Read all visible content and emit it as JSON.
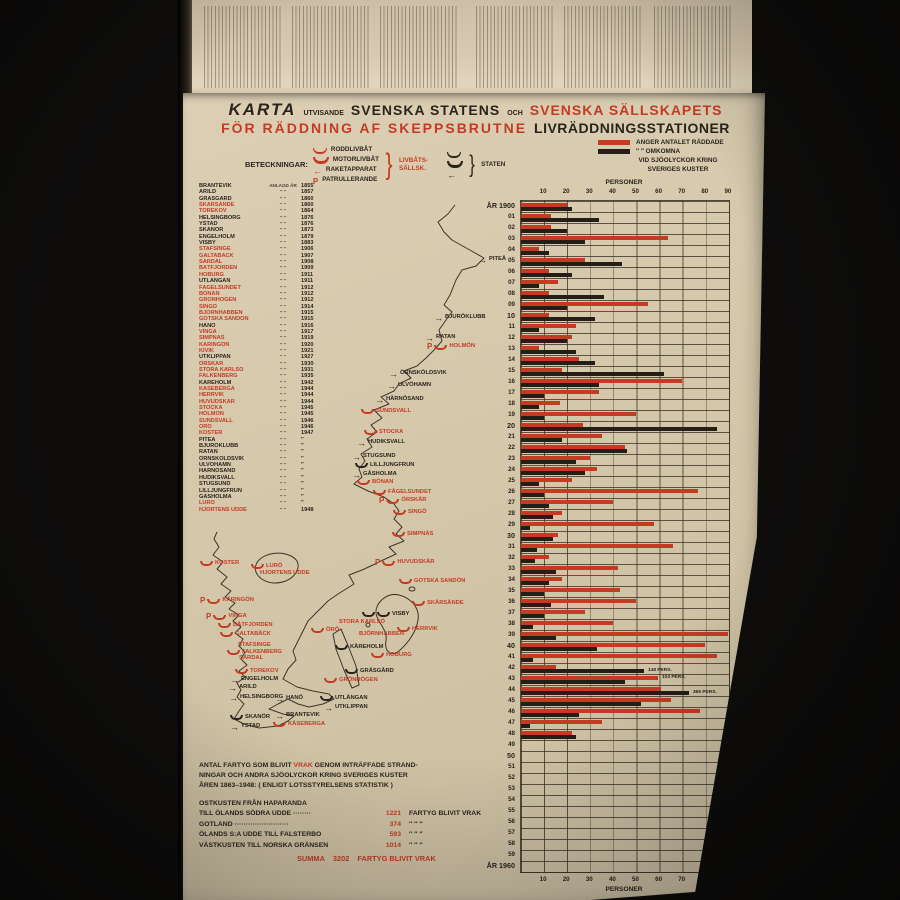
{
  "palette": {
    "paper": "#d5c8ab",
    "ink": "#2a241d",
    "red": "#c43b24",
    "black_bar": "#241e17"
  },
  "title": {
    "word1": "KARTA",
    "small1": "UTVISANDE",
    "word2": "SVENSKA STATENS",
    "small2": "OCH",
    "word3": "SVENSKA SÄLLSKAPETS",
    "line2_red": "FÖR RÄDDNING AF SKEPPSBRUTNE",
    "line2_black": "LIVRÄDDNINGSSTATIONER"
  },
  "legend": {
    "caption": "BETECKNINGAR:",
    "items": [
      {
        "symbol": "hull-open",
        "label": "RODDLIVBÅT"
      },
      {
        "symbol": "hull",
        "label": "MOTORLIVBÅT"
      },
      {
        "symbol": "arrow",
        "label": "RAKETAPPARAT"
      },
      {
        "symbol": "P",
        "label": "PATRULLERANDE"
      }
    ],
    "group1": "LIVBÅTS-\nSÄLLSK.",
    "group2": "STATEN"
  },
  "chart_legend": {
    "row1": "ANGER  ANTALET  RÄDDADE",
    "row2": "″        ″        OMKOMNA",
    "row3": "VID   SJÖOLYCKOR   KRING",
    "row4": "SVERIGES   KUSTER"
  },
  "stations": {
    "header": "ANLAGD ÅR",
    "ditto": "″      ″",
    "rows": [
      [
        "BRANTEVIK",
        "1855",
        "k"
      ],
      [
        "ARILD",
        "1857",
        "k"
      ],
      [
        "GRÄSGÅRD",
        "1860",
        "k"
      ],
      [
        "SKÄRSÄNDE",
        "1860",
        "r"
      ],
      [
        "TOREKOV",
        "1864",
        "r"
      ],
      [
        "HELSINGBORG",
        "1876",
        "k"
      ],
      [
        "YSTAD",
        "1876",
        "k"
      ],
      [
        "SKANÖR",
        "1873",
        "k"
      ],
      [
        "ENGELHOLM",
        "1879",
        "k"
      ],
      [
        "VISBY",
        "1883",
        "k"
      ],
      [
        "STAFSINGE",
        "1906",
        "r"
      ],
      [
        "GALTABÄCK",
        "1907",
        "r"
      ],
      [
        "SÄRDAL",
        "1908",
        "r"
      ],
      [
        "BÅTFJORDEN",
        "1909",
        "r"
      ],
      [
        "HOBURG",
        "1911",
        "r"
      ],
      [
        "UTLÄNGAN",
        "1911",
        "k"
      ],
      [
        "FÅGELSUNDET",
        "1912",
        "r"
      ],
      [
        "BÖNAN",
        "1912",
        "r"
      ],
      [
        "GRÖNHÖGEN",
        "1912",
        "r"
      ],
      [
        "SINGÖ",
        "1914",
        "r"
      ],
      [
        "BJÖRNHABBEN",
        "1915",
        "r"
      ],
      [
        "GOTSKA SANDÖN",
        "1915",
        "r"
      ],
      [
        "HANÖ",
        "1916",
        "k"
      ],
      [
        "VINGA",
        "1917",
        "r"
      ],
      [
        "SIMPNÄS",
        "1919",
        "r"
      ],
      [
        "KÄRINGÖN",
        "1920",
        "r"
      ],
      [
        "KIVIK",
        "1921",
        "r"
      ],
      [
        "UTKLIPPAN",
        "1927",
        "k"
      ],
      [
        "ÖRSKÄR",
        "1930",
        "r"
      ],
      [
        "STORA KARLSÖ",
        "1931",
        "r"
      ],
      [
        "FALKENBERG",
        "1935",
        "r"
      ],
      [
        "KÅREHOLM",
        "1942",
        "k"
      ],
      [
        "KÅSEBERGA",
        "1944",
        "r"
      ],
      [
        "HERRVIK",
        "1944",
        "r"
      ],
      [
        "HUVUDSKÄR",
        "1944",
        "r"
      ],
      [
        "STOCKA",
        "1945",
        "r"
      ],
      [
        "HOLMÖN",
        "1945",
        "r"
      ],
      [
        "SUNDSVALL",
        "1946",
        "r"
      ],
      [
        "ÖRÖ",
        "1946",
        "r"
      ],
      [
        "KOSTER",
        "1947",
        "r"
      ],
      [
        "PITEÅ",
        "″",
        "k"
      ],
      [
        "BJURÖKLUBB",
        "″",
        "k"
      ],
      [
        "RATAN",
        "″",
        "k"
      ],
      [
        "ÖRNSKÖLDSVIK",
        "″",
        "k"
      ],
      [
        "ULVÖHAMN",
        "″",
        "k"
      ],
      [
        "HÄRNÖSAND",
        "″",
        "k"
      ],
      [
        "HUDIKSVALL",
        "″",
        "k"
      ],
      [
        "STUGSUND",
        "″",
        "k"
      ],
      [
        "LILLJUNGFRUN",
        "″",
        "k"
      ],
      [
        "GÅSHOLMA",
        "″",
        "k"
      ],
      [
        "LURÖ",
        "″",
        "r"
      ],
      [
        "HJORTENS UDDE",
        "1948",
        "r"
      ]
    ]
  },
  "map_labels": [
    [
      "PITEÅ",
      313,
      167,
      "k",
      "arrow"
    ],
    [
      "BJURÖKLUBB",
      269,
      225,
      "k",
      "arrow"
    ],
    [
      "RATAN",
      260,
      245,
      "k",
      "arrow"
    ],
    [
      "HOLMÖN",
      272,
      253,
      "r",
      "Phull"
    ],
    [
      "ÖRNSKÖLDSVIK",
      224,
      281,
      "k",
      "arrow"
    ],
    [
      "ULVÖHAMN",
      222,
      293,
      "k",
      "arrow"
    ],
    [
      "HÄRNÖSAND",
      210,
      307,
      "k",
      "arrow"
    ],
    [
      "SUNDSVALL",
      196,
      319,
      "r",
      "hull"
    ],
    [
      "STOCKA",
      199,
      340,
      "r",
      "hull"
    ],
    [
      "HUDIKSVALL",
      192,
      350,
      "k",
      "arrow"
    ],
    [
      "STUGSUND",
      187,
      364,
      "k",
      "arrow"
    ],
    [
      "LILLJUNGFRUN",
      190,
      373,
      "k",
      "hull"
    ],
    [
      "GÅSHOLMA",
      187,
      382,
      "k",
      "arrow"
    ],
    [
      "BÖNAN",
      192,
      390,
      "r",
      "hull"
    ],
    [
      "FÅGELSUNDET",
      208,
      400,
      "r",
      "hull"
    ],
    [
      "ÖRSKÄR",
      224,
      407,
      "r",
      "Phull"
    ],
    [
      "SINGÖ",
      228,
      420,
      "r",
      "hull"
    ],
    [
      "SIMPNÄS",
      227,
      442,
      "r",
      "hull"
    ],
    [
      "HUVUDSKÄR",
      220,
      469,
      "r",
      "Phull"
    ],
    [
      "GOTSKA SANDÖN",
      234,
      489,
      "r",
      "hull"
    ],
    [
      "SKÄRSÄNDE",
      247,
      511,
      "r",
      "hull"
    ],
    [
      "VISBY",
      197,
      522,
      "k",
      "hull2"
    ],
    [
      "STORA KARLSÖ",
      162,
      530,
      "r",
      "none"
    ],
    [
      "ÖRÖ",
      146,
      538,
      "r",
      "hull"
    ],
    [
      "HERRVIK",
      232,
      537,
      "r",
      "hull"
    ],
    [
      "BJÖRNHABBEN",
      182,
      542,
      "r",
      "none"
    ],
    [
      "KÅREHOLM",
      170,
      555,
      "k",
      "hull"
    ],
    [
      "HOBURG",
      206,
      563,
      "r",
      "hull"
    ],
    [
      "GRÄSGÅRD",
      180,
      579,
      "k",
      "hull"
    ],
    [
      "GRÖNHÖGEN",
      159,
      588,
      "r",
      "hull"
    ],
    [
      "UTLÄNGAN",
      155,
      606,
      "k",
      "hull"
    ],
    [
      "UTKLIPPAN",
      159,
      615,
      "k",
      "arrow"
    ],
    [
      "HANÖ",
      110,
      606,
      "k",
      "arrow"
    ],
    [
      "BRANTEVIK",
      110,
      623,
      "k",
      "arrow"
    ],
    [
      "KÅSEBERGA",
      108,
      632,
      "r",
      "hull"
    ],
    [
      "YSTAD",
      65,
      634,
      "k",
      "arrow"
    ],
    [
      "SKANÖR",
      65,
      625,
      "k",
      "hull"
    ],
    [
      "HELSINGBORG",
      64,
      605,
      "k",
      "arrow"
    ],
    [
      "ARILD",
      63,
      595,
      "k",
      "arrow"
    ],
    [
      "ENGELHOLM",
      65,
      587,
      "k",
      "arrow"
    ],
    [
      "TOREKOV",
      70,
      579,
      "r",
      "hull"
    ],
    [
      "SÄRDAL",
      62,
      566,
      "r",
      "none"
    ],
    [
      "FALKENBERG",
      62,
      560,
      "r",
      "hull"
    ],
    [
      "STAFSINGE",
      61,
      553,
      "r",
      "none"
    ],
    [
      "GALTABÄCK",
      55,
      542,
      "r",
      "hull"
    ],
    [
      "BÅTFJORDEN",
      53,
      533,
      "r",
      "hull"
    ],
    [
      "VINGA",
      51,
      523,
      "r",
      "Phull"
    ],
    [
      "KÄRINGÖN",
      45,
      507,
      "r",
      "Phull"
    ],
    [
      "KOSTER",
      35,
      471,
      "r",
      "hull"
    ],
    [
      "LURÖ",
      86,
      474,
      "r",
      "hull"
    ],
    [
      "HJORTENS UDDE",
      83,
      481,
      "r",
      "none"
    ]
  ],
  "chart_data": {
    "type": "bar",
    "orientation": "horizontal",
    "unit_label": "PERSONER",
    "x_ticks": [
      10,
      20,
      30,
      40,
      50,
      60,
      70,
      80,
      90
    ],
    "first_year_label": "ÅR 1900",
    "last_year_label": "ÅR 1960",
    "years_start": 1900,
    "years_end": 1960,
    "series": [
      {
        "name": "RÄDDADE",
        "color": "#c43b24",
        "values": [
          20,
          13,
          13,
          64,
          8,
          28,
          12,
          16,
          12,
          55,
          12,
          24,
          22,
          8,
          25,
          18,
          70,
          34,
          17,
          50,
          27,
          35,
          45,
          30,
          33,
          22,
          77,
          40,
          18,
          58,
          16,
          66,
          12,
          42,
          18,
          43,
          50,
          28,
          40,
          90,
          80,
          85,
          15,
          103,
          100,
          65,
          78,
          35,
          22,
          0,
          0,
          0,
          0,
          0,
          0,
          0,
          0,
          0,
          0,
          0,
          0
        ]
      },
      {
        "name": "OMKOMNA",
        "color": "#241e17",
        "values": [
          22,
          34,
          20,
          28,
          12,
          44,
          22,
          8,
          36,
          20,
          32,
          8,
          20,
          24,
          32,
          62,
          34,
          10,
          8,
          10,
          85,
          18,
          46,
          24,
          28,
          8,
          10,
          12,
          14,
          4,
          14,
          7,
          6,
          15,
          12,
          10,
          13,
          10,
          5,
          15,
          33,
          5,
          148,
          45,
          365,
          52,
          25,
          4,
          24,
          0,
          0,
          0,
          0,
          0,
          0,
          0,
          0,
          0,
          0,
          0,
          0
        ]
      }
    ],
    "annotations": [
      {
        "year": 1942,
        "series": "OMKOMNA",
        "text": "148 PERS."
      },
      {
        "year": 1943,
        "series": "RÄDDADE",
        "text": "103 PERS."
      },
      {
        "year": 1944,
        "series": "OMKOMNA",
        "text": "365 PERS."
      }
    ]
  },
  "footer": {
    "para": [
      [
        {
          "t": "ANTAL  FARTYG  SOM  BLIVIT  ",
          "c": "k"
        },
        {
          "t": "VRAK",
          "c": "r"
        },
        {
          "t": "  GENOM  INTRÄFFADE  STRAND-",
          "c": "k"
        }
      ],
      [
        {
          "t": "NINGAR  OCH  ANDRA  SJÖOLYCKOR  KRING  SVERIGES  KUSTER",
          "c": "k"
        }
      ],
      [
        {
          "t": "ÅREN  1863–1948:  ( ENLIGT  LOTSSTYRELSENS  STATISTIK )",
          "c": "k"
        }
      ]
    ],
    "stats": [
      {
        "left": "OSTKUSTEN  FRÅN  HAPARANDA",
        "value": "",
        "suffix": ""
      },
      {
        "left": "TILL  ÖLANDS  SÖDRA  UDDE ········",
        "value": "1221",
        "suffix": "FARTYG  BLIVIT  VRAK"
      },
      {
        "left": "GOTLAND ························",
        "value": "374",
        "suffix": "″        ″        ″"
      },
      {
        "left": "ÖLANDS  S:A  UDDE  TILL  FALSTERBO",
        "value": "593",
        "suffix": "″        ″        ″"
      },
      {
        "left": "VÄSTKUSTEN  TILL  NORSKA  GRÄNSEN",
        "value": "1014",
        "suffix": "″        ″        ″"
      }
    ],
    "summa_label": "SUMMA",
    "summa_value": "3202",
    "summa_suffix": "FARTYG  BLIVIT  VRAK"
  }
}
